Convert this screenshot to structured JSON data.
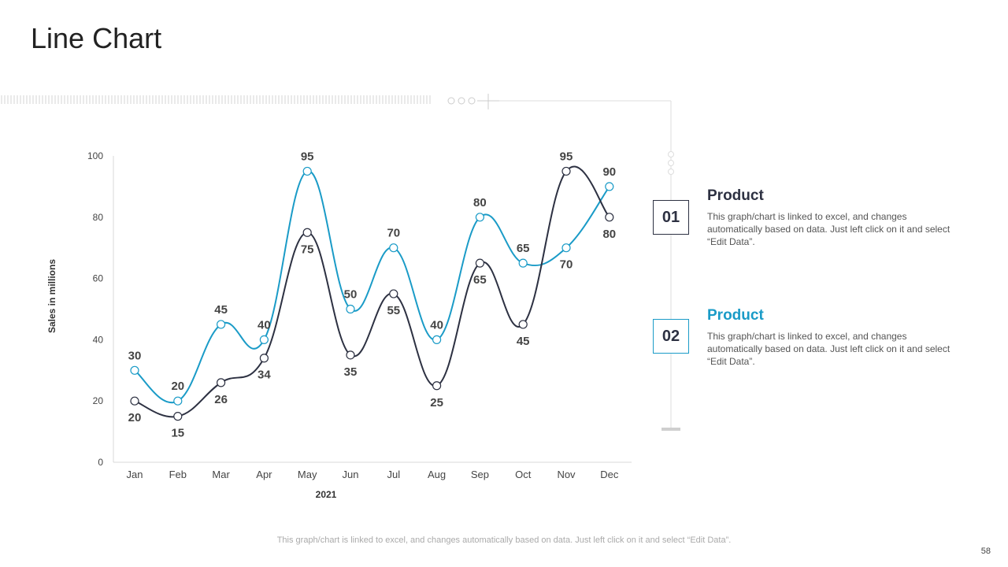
{
  "slide": {
    "title": "Line Chart",
    "page_number": "58",
    "footer_note": "This graph/chart is linked to excel, and changes automatically based on data. Just left click on it and select “Edit Data”."
  },
  "legend": [
    {
      "number": "01",
      "title": "Product",
      "description": "This graph/chart is linked to excel, and changes automatically based on data. Just left click on it and select “Edit Data”.",
      "color": "#2d3142"
    },
    {
      "number": "02",
      "title": "Product",
      "description": "This graph/chart is linked to excel, and changes automatically based on data. Just left click on it and select “Edit Data”.",
      "color": "#1a9bc7"
    }
  ],
  "chart_data": {
    "type": "line",
    "title": "",
    "xlabel": "2021",
    "ylabel": "Sales in millions",
    "ylim": [
      0,
      100
    ],
    "yticks": [
      0,
      20,
      40,
      60,
      80,
      100
    ],
    "grid": false,
    "smooth": true,
    "categories": [
      "Jan",
      "Feb",
      "Mar",
      "Apr",
      "May",
      "Jun",
      "Jul",
      "Aug",
      "Sep",
      "Oct",
      "Nov",
      "Dec"
    ],
    "series": [
      {
        "name": "Product 01",
        "color": "#2d3142",
        "values": [
          20,
          15,
          26,
          34,
          75,
          35,
          55,
          25,
          65,
          45,
          95,
          80
        ]
      },
      {
        "name": "Product 02",
        "color": "#1a9bc7",
        "values": [
          30,
          20,
          45,
          40,
          95,
          50,
          70,
          40,
          80,
          65,
          70,
          90
        ]
      }
    ]
  }
}
